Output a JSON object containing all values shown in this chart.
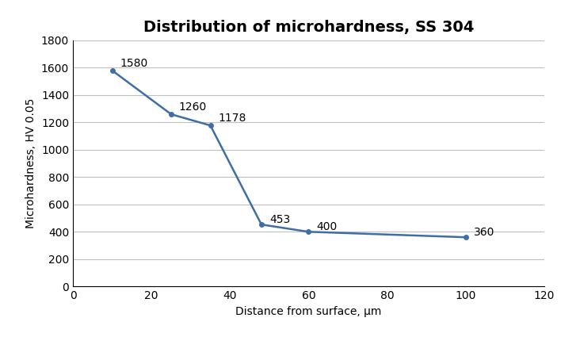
{
  "title": "Distribution of microhardness, SS 304",
  "xlabel": "Distance from surface, μm",
  "ylabel": "Microhardness, HV 0.05",
  "x": [
    10,
    25,
    35,
    48,
    60,
    100
  ],
  "y": [
    1580,
    1260,
    1178,
    453,
    400,
    360
  ],
  "labels": [
    "1580",
    "1260",
    "1178",
    "453",
    "400",
    "360"
  ],
  "label_offsets_x": [
    2,
    2,
    2,
    2,
    2,
    2
  ],
  "label_offsets_y": [
    30,
    30,
    30,
    15,
    15,
    15
  ],
  "xlim": [
    0,
    120
  ],
  "ylim": [
    0,
    1800
  ],
  "xticks": [
    0,
    20,
    40,
    60,
    80,
    100,
    120
  ],
  "yticks": [
    0,
    200,
    400,
    600,
    800,
    1000,
    1200,
    1400,
    1600,
    1800
  ],
  "line_color": "#3F6EA6",
  "marker": "o",
  "markersize": 4,
  "linewidth": 1.8,
  "grid_color": "#BFBFBF",
  "background_color": "#FFFFFF",
  "title_fontsize": 14,
  "axis_label_fontsize": 10,
  "tick_fontsize": 10,
  "annotation_fontsize": 10
}
